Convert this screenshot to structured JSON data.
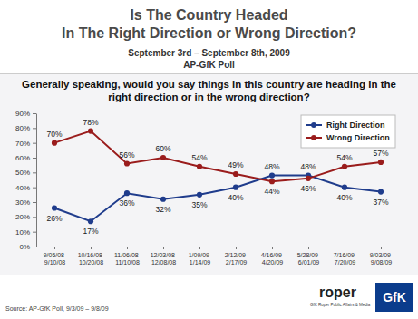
{
  "chart_data": {
    "type": "line",
    "title": "Is The Country Headed In The Right Direction or Wrong Direction?",
    "subtitle": "September 3rd – September 8th, 2009",
    "annotations": [
      "AP-GfK Poll",
      "Generally speaking, would you say things in this country are heading in the right direction or in the wrong direction?",
      "Source: AP-GfK Poll, 9/3/09 – 9/8/09",
      "roper",
      "GfK Roper Public Affairs & Media",
      "GfK"
    ],
    "categories": [
      "9/05/08-9/10/08",
      "10/16/08-10/20/08",
      "11/06/08-11/10/08",
      "12/03/08-12/08/08",
      "1/09/09-1/14/09",
      "2/12/09-2/17/09",
      "4/16/09-4/20/09",
      "5/28/09-6/01/09",
      "7/16/09-7/20/09",
      "9/03/09-9/08/09"
    ],
    "series": [
      {
        "name": "Right Direction",
        "color": "#1f3c8c",
        "marker": "circle",
        "values": [
          26,
          17,
          36,
          32,
          35,
          40,
          48,
          48,
          40,
          37
        ],
        "value_labels": [
          "26%",
          "17%",
          "36%",
          "32%",
          "35%",
          "40%",
          "48%",
          "48%",
          "40%",
          "37%"
        ]
      },
      {
        "name": "Wrong Direction",
        "color": "#9a1c1c",
        "marker": "circle",
        "values": [
          70,
          78,
          56,
          60,
          54,
          49,
          44,
          46,
          54,
          57
        ],
        "value_labels": [
          "70%",
          "78%",
          "56%",
          "60%",
          "54%",
          "49%",
          "44%",
          "46%",
          "54%",
          "57%"
        ]
      }
    ],
    "ylim": [
      0,
      90
    ],
    "yticks": [
      {
        "value": 0,
        "label": "0%"
      },
      {
        "value": 10,
        "label": "10%"
      },
      {
        "value": 20,
        "label": "20%"
      },
      {
        "value": 30,
        "label": "30%"
      },
      {
        "value": 40,
        "label": "40%"
      },
      {
        "value": 50,
        "label": "50%"
      },
      {
        "value": 60,
        "label": "60%"
      },
      {
        "value": 70,
        "label": "70%"
      },
      {
        "value": 80,
        "label": "80%"
      },
      {
        "value": 90,
        "label": "90%"
      }
    ],
    "grid": false,
    "legend": "upper right",
    "data_labels": true
  }
}
